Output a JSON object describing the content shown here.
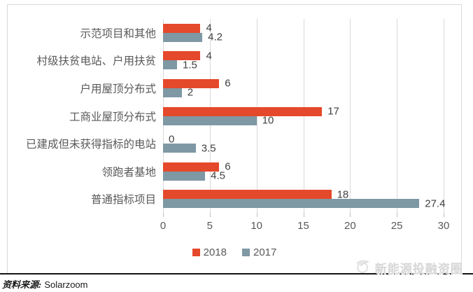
{
  "chart_data": {
    "type": "bar",
    "orientation": "horizontal",
    "title": "",
    "categories": [
      "示范项目和其他",
      "村级扶贫电站、户用扶贫",
      "户用屋顶分布式",
      "工商业屋顶分布式",
      "已建成但未获得指标的电站",
      "领跑者基地",
      "普通指标项目"
    ],
    "series": [
      {
        "name": "2018",
        "color": "#e5492b",
        "values": [
          4,
          4,
          6,
          17,
          0,
          6,
          18
        ]
      },
      {
        "name": "2017",
        "color": "#7e98a4",
        "values": [
          4.2,
          1.5,
          2,
          10,
          3.5,
          4.5,
          27.4
        ]
      }
    ],
    "xlim": [
      0,
      30
    ],
    "xticks": [
      0,
      5,
      10,
      15,
      20,
      25,
      30
    ],
    "grid": true,
    "value_labels": true,
    "legend_position": "bottom-center"
  },
  "footer": {
    "source_label": "资料来源:",
    "source_value": "Solarzoom"
  },
  "watermark": {
    "text": "新能源投融资圈",
    "icon": "bird-logo-icon"
  },
  "colors": {
    "grid": "#d9d9d9",
    "axis_text": "#595959",
    "value_text": "#404040",
    "frame_border": "#d9d9d9",
    "divider": "#141414",
    "watermark_text": "#d7d7d7"
  }
}
